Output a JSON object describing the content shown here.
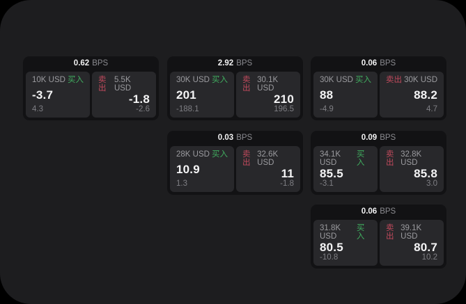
{
  "labels": {
    "bps_unit": "BPS",
    "buy": "买入",
    "sell": "卖出"
  },
  "colors": {
    "outer_bg": "#000000",
    "surface_bg": "#1d1d1f",
    "card_bg": "#121214",
    "panel_bg": "#28282b",
    "buy_green": "#40ad5f",
    "sell_red": "#c14a5c",
    "value_white": "#f4f4f5",
    "muted_gray": "#9b9b9f"
  },
  "cards": [
    {
      "bps": "0.62",
      "buy": {
        "amount": "10K USD",
        "price": "-3.7",
        "sub": "4.3"
      },
      "sell": {
        "amount": "5.5K USD",
        "price": "-1.8",
        "sub": "-2.6"
      }
    },
    {
      "bps": "2.92",
      "buy": {
        "amount": "30K USD",
        "price": "201",
        "sub": "-188.1"
      },
      "sell": {
        "amount": "30.1K USD",
        "price": "210",
        "sub": "196.5"
      }
    },
    {
      "bps": "0.06",
      "buy": {
        "amount": "30K USD",
        "price": "88",
        "sub": "-4.9"
      },
      "sell": {
        "amount": "30K USD",
        "price": "88.2",
        "sub": "4.7"
      }
    },
    {
      "bps": "0.03",
      "buy": {
        "amount": "28K USD",
        "price": "10.9",
        "sub": "1.3"
      },
      "sell": {
        "amount": "32.6K USD",
        "price": "11",
        "sub": "-1.8"
      }
    },
    {
      "bps": "0.09",
      "buy": {
        "amount": "34.1K USD",
        "price": "85.5",
        "sub": "-3.1"
      },
      "sell": {
        "amount": "32.8K USD",
        "price": "85.8",
        "sub": "3.0"
      }
    },
    {
      "bps": "0.06",
      "buy": {
        "amount": "31.8K USD",
        "price": "80.5",
        "sub": "-10.8"
      },
      "sell": {
        "amount": "39.1K USD",
        "price": "80.7",
        "sub": "10.2"
      }
    }
  ]
}
